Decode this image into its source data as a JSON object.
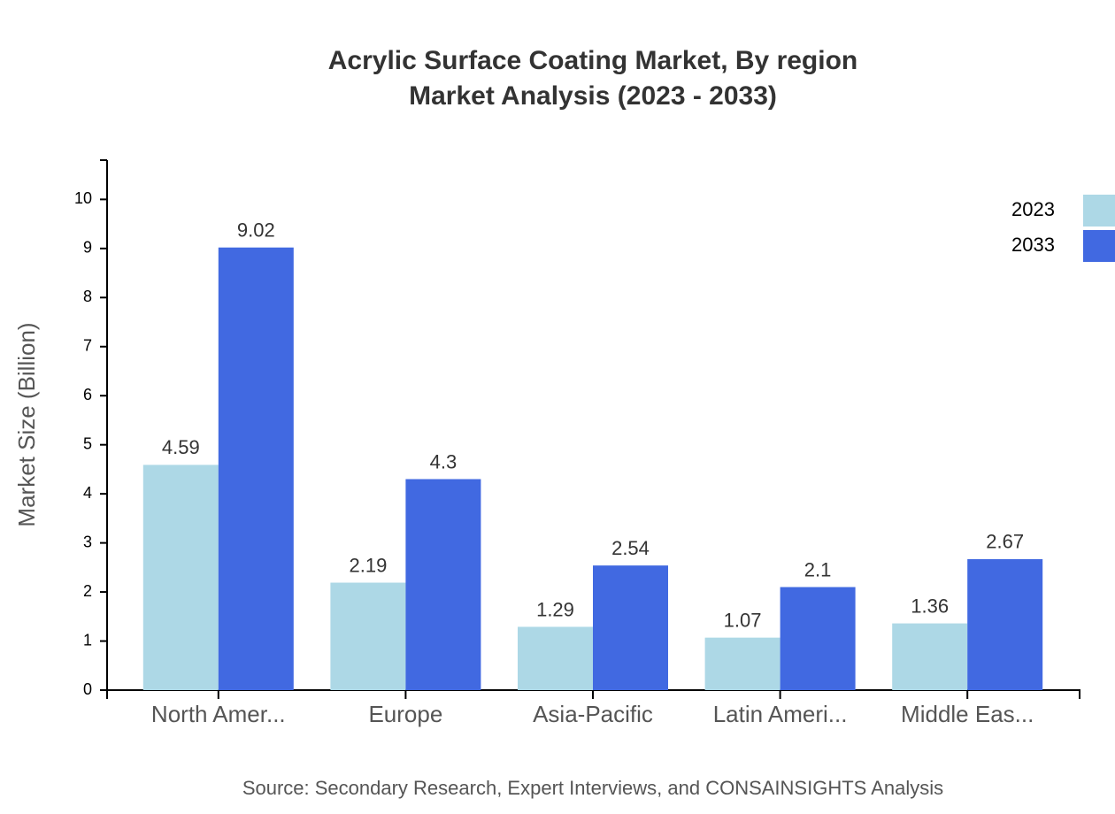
{
  "chart_data": {
    "type": "bar",
    "title": "Acrylic Surface Coating Market, By region",
    "subtitle": "Market Analysis (2023 - 2033)",
    "y_label": "Market Size (Billion)",
    "source": "Source: Secondary Research, Expert Interviews, and CONSAINSIGHTS Analysis",
    "categories": [
      "North Amer...",
      "Europe",
      "Asia-Pacific",
      "Latin Ameri...",
      "Middle Eas..."
    ],
    "series": [
      {
        "name": "2023",
        "color": "#add8e6",
        "values": [
          4.59,
          2.19,
          1.29,
          1.07,
          1.36
        ]
      },
      {
        "name": "2033",
        "color": "#4169e1",
        "values": [
          9.02,
          4.3,
          2.54,
          2.1,
          2.67
        ]
      }
    ],
    "ylim": [
      0,
      10.8
    ],
    "yticks": [
      0,
      1,
      2,
      3,
      4,
      5,
      6,
      7,
      8,
      9,
      10
    ],
    "legend": "top-right"
  }
}
